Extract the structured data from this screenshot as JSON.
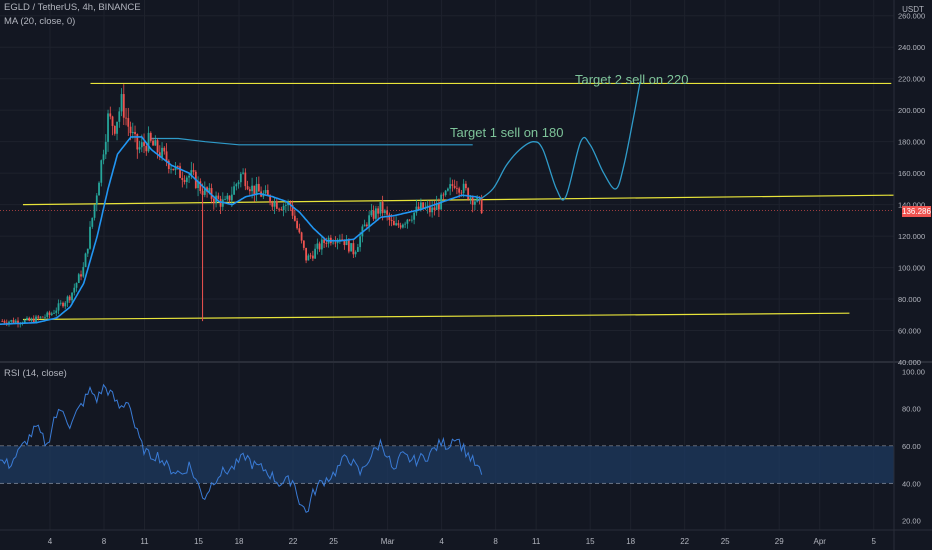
{
  "header": {
    "symbol_line": "EGLD / TetherUS, 4h, BINANCE",
    "ma_line": "MA (20, close, 0)",
    "currency": "USDT",
    "rsi_label": "RSI (14, close)",
    "last_price": "136.286"
  },
  "annotations": {
    "target1": "Target 1  sell on  180",
    "target2": "Target 2   sell on 220"
  },
  "colors": {
    "background": "#131722",
    "up": "#26a69a",
    "down": "#ef5350",
    "ma": "#2196f3",
    "projection": "#2f9bc9",
    "trendline": "#e8e43a",
    "rsi": "#3a7bd5",
    "rsi_band": "#1e3a5f",
    "text": "#b2b5be",
    "annotation": "#7ec49a"
  },
  "chart_data": [
    {
      "type": "candlestick",
      "ylim": [
        40,
        270
      ],
      "y_ticks": [
        "260.000",
        "240.000",
        "220.000",
        "200.000",
        "180.000",
        "160.000",
        "140.000",
        "120.000",
        "100.000",
        "80.000",
        "60.000",
        "40.000"
      ],
      "y_tick_values": [
        260,
        240,
        220,
        200,
        180,
        160,
        140,
        120,
        100,
        80,
        60,
        40
      ],
      "x_ticks": [
        "4",
        "8",
        "11",
        "15",
        "18",
        "22",
        "25",
        "Mar",
        "4",
        "8",
        "11",
        "15",
        "18",
        "22",
        "25",
        "29",
        "Apr",
        "5"
      ],
      "x_tick_days": [
        4,
        8,
        11,
        15,
        18,
        22,
        25,
        29,
        33,
        37,
        40,
        44,
        47,
        51,
        54,
        58,
        61,
        65
      ],
      "x_range_days": [
        0.3,
        66.5
      ],
      "close_anchors": [
        [
          0.3,
          66
        ],
        [
          2.5,
          66
        ],
        [
          4,
          70
        ],
        [
          5.5,
          82
        ],
        [
          6.5,
          100
        ],
        [
          7.5,
          150
        ],
        [
          8.3,
          195
        ],
        [
          8.8,
          190
        ],
        [
          9.3,
          205
        ],
        [
          9.8,
          190
        ],
        [
          10.5,
          175
        ],
        [
          11.3,
          180
        ],
        [
          12.5,
          170
        ],
        [
          13.5,
          160
        ],
        [
          14.5,
          158
        ],
        [
          15.2,
          150
        ],
        [
          16,
          145
        ],
        [
          17,
          140
        ],
        [
          18.2,
          160
        ],
        [
          19,
          150
        ],
        [
          20,
          145
        ],
        [
          21,
          140
        ],
        [
          21.8,
          140
        ],
        [
          22.3,
          125
        ],
        [
          23,
          105
        ],
        [
          23.8,
          112
        ],
        [
          24.5,
          118
        ],
        [
          25.5,
          120
        ],
        [
          26.5,
          110
        ],
        [
          27.5,
          130
        ],
        [
          28.5,
          138
        ],
        [
          29.5,
          125
        ],
        [
          30.5,
          132
        ],
        [
          31.5,
          138
        ],
        [
          32.3,
          136
        ],
        [
          33.3,
          145
        ],
        [
          34,
          155
        ],
        [
          34.8,
          148
        ],
        [
          35.5,
          143
        ],
        [
          36,
          138
        ]
      ],
      "ma_anchors": [
        [
          0.3,
          64
        ],
        [
          3,
          65
        ],
        [
          4.5,
          68
        ],
        [
          5.5,
          75
        ],
        [
          6.5,
          90
        ],
        [
          7.5,
          120
        ],
        [
          8.3,
          150
        ],
        [
          9,
          172
        ],
        [
          10,
          183
        ],
        [
          10.8,
          183
        ],
        [
          11.5,
          175
        ],
        [
          13,
          165
        ],
        [
          14.3,
          160
        ],
        [
          15.5,
          150
        ],
        [
          16.5,
          142
        ],
        [
          17.5,
          140
        ],
        [
          18.5,
          145
        ],
        [
          19.5,
          147
        ],
        [
          20.5,
          145
        ],
        [
          21.5,
          142
        ],
        [
          22.5,
          135
        ],
        [
          23.5,
          125
        ],
        [
          24.5,
          117
        ],
        [
          25.5,
          117
        ],
        [
          26.5,
          118
        ],
        [
          27.5,
          125
        ],
        [
          28.5,
          132
        ],
        [
          29.5,
          133
        ],
        [
          30.5,
          135
        ],
        [
          31.5,
          137
        ],
        [
          32.5,
          140
        ],
        [
          33.5,
          143
        ],
        [
          34.5,
          146
        ],
        [
          35.5,
          145
        ],
        [
          36,
          144
        ]
      ],
      "projection_points": [
        [
          35.6,
          142
        ],
        [
          36.8,
          150
        ],
        [
          37.8,
          165
        ],
        [
          38.8,
          175
        ],
        [
          39.8,
          180
        ],
        [
          40.5,
          175
        ],
        [
          41.5,
          150
        ],
        [
          42.2,
          145
        ],
        [
          43.3,
          180
        ],
        [
          44,
          178
        ],
        [
          45,
          160
        ],
        [
          45.9,
          150
        ],
        [
          46.5,
          165
        ],
        [
          47.2,
          195
        ],
        [
          47.7,
          218
        ]
      ],
      "lines": [
        {
          "name": "Target 2",
          "points": [
            [
              7,
              217
            ],
            [
              66.3,
              217
            ]
          ]
        },
        {
          "name": "Mid",
          "points": [
            [
              2,
              140
            ],
            [
              66.5,
              146
            ]
          ]
        },
        {
          "name": "Support",
          "points": [
            [
              2,
              67
            ],
            [
              63.2,
              71
            ]
          ]
        }
      ],
      "target1_line": [
        [
          11.5,
          182
        ],
        [
          13.5,
          182
        ],
        [
          15.5,
          180
        ],
        [
          18,
          178
        ],
        [
          22,
          178
        ],
        [
          30,
          178
        ],
        [
          35.3,
          178
        ]
      ]
    },
    {
      "type": "line",
      "ylim": [
        15,
        105
      ],
      "y_ticks": [
        "100.00",
        "80.00",
        "60.00",
        "40.00",
        "20.00"
      ],
      "y_tick_values": [
        100,
        80,
        60,
        40,
        20
      ],
      "band": [
        40,
        60
      ],
      "rsi_anchors": [
        [
          0.3,
          52
        ],
        [
          1,
          50
        ],
        [
          1.5,
          55
        ],
        [
          2,
          60
        ],
        [
          3,
          70
        ],
        [
          3.8,
          60
        ],
        [
          4.3,
          75
        ],
        [
          5,
          80
        ],
        [
          5.5,
          70
        ],
        [
          6,
          78
        ],
        [
          7,
          90
        ],
        [
          7.5,
          85
        ],
        [
          8,
          92
        ],
        [
          8.5,
          88
        ],
        [
          9.2,
          80
        ],
        [
          9.8,
          85
        ],
        [
          10.3,
          70
        ],
        [
          10.8,
          60
        ],
        [
          11.3,
          55
        ],
        [
          12,
          55
        ],
        [
          12.8,
          48
        ],
        [
          13.8,
          45
        ],
        [
          14.3,
          50
        ],
        [
          14.8,
          42
        ],
        [
          15.4,
          32
        ],
        [
          16,
          40
        ],
        [
          16.5,
          45
        ],
        [
          17.5,
          48
        ],
        [
          18.5,
          55
        ],
        [
          19,
          50
        ],
        [
          20,
          47
        ],
        [
          21,
          40
        ],
        [
          22,
          42
        ],
        [
          22.5,
          30
        ],
        [
          23,
          24
        ],
        [
          23.5,
          35
        ],
        [
          24,
          40
        ],
        [
          25,
          45
        ],
        [
          26,
          55
        ],
        [
          26.5,
          50
        ],
        [
          27,
          45
        ],
        [
          27.5,
          52
        ],
        [
          28.5,
          62
        ],
        [
          29,
          55
        ],
        [
          29.5,
          45
        ],
        [
          30,
          55
        ],
        [
          31,
          52
        ],
        [
          32,
          55
        ],
        [
          33,
          62
        ],
        [
          33.5,
          60
        ],
        [
          34,
          66
        ],
        [
          34.5,
          60
        ],
        [
          35,
          55
        ],
        [
          35.5,
          50
        ],
        [
          36,
          44
        ]
      ]
    }
  ]
}
